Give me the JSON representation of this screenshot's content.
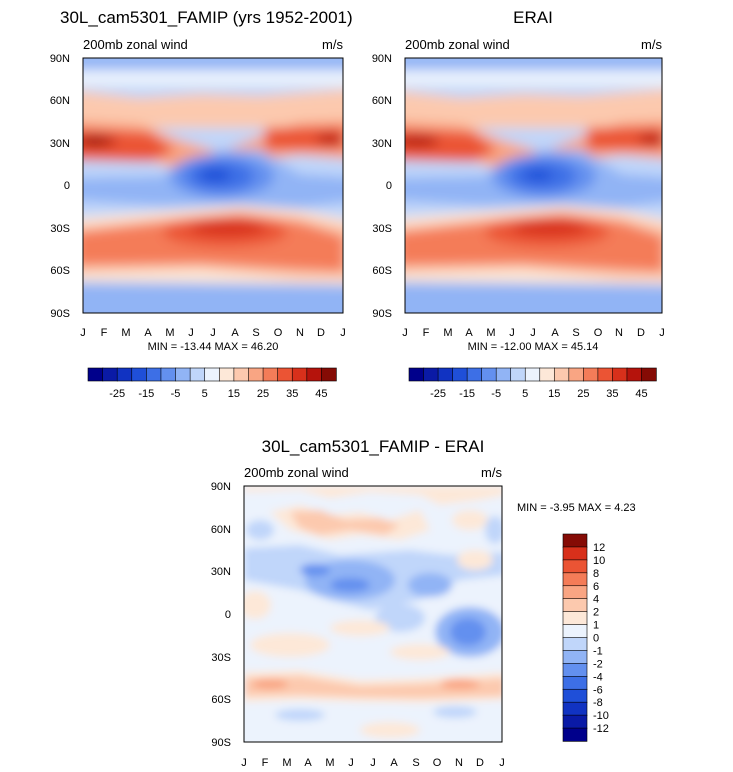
{
  "chart_data": [
    {
      "type": "heatmap",
      "title": "30L_cam5301_FAMIP (yrs 1952-2001)",
      "left_label": "200mb zonal wind",
      "right_label": "m/s",
      "x_ticks": [
        "J",
        "F",
        "M",
        "A",
        "M",
        "J",
        "J",
        "A",
        "S",
        "O",
        "N",
        "D",
        "J"
      ],
      "y_ticks": [
        "90N",
        "60N",
        "30N",
        "0",
        "30S",
        "60S",
        "90S"
      ],
      "ylim": [
        -90,
        90
      ],
      "stats": "MIN = -13.44 MAX =  46.20",
      "min": -13.44,
      "max": 46.2,
      "colorbar_levels": [
        -30,
        -25,
        -20,
        -15,
        -10,
        -5,
        0,
        5,
        10,
        15,
        20,
        25,
        30,
        35,
        40,
        45
      ],
      "colorbar_labels": [
        "-25",
        "-15",
        "-5",
        "5",
        "15",
        "25",
        "35",
        "45"
      ],
      "colorbar_colors": [
        "#00008b",
        "#0a1aa6",
        "#1133c2",
        "#1f4fd8",
        "#3d6fe6",
        "#6390ef",
        "#91b4f5",
        "#c0d6fa",
        "#ecf3fd",
        "#fde8d8",
        "#fcc9ae",
        "#f9a583",
        "#f47c58",
        "#eb5434",
        "#d8301b",
        "#b5130c",
        "#850b05"
      ]
    },
    {
      "type": "heatmap",
      "title": "ERAI",
      "left_label": "200mb zonal wind",
      "right_label": "m/s",
      "x_ticks": [
        "J",
        "F",
        "M",
        "A",
        "M",
        "J",
        "J",
        "A",
        "S",
        "O",
        "N",
        "D",
        "J"
      ],
      "y_ticks": [
        "90N",
        "60N",
        "30N",
        "0",
        "30S",
        "60S",
        "90S"
      ],
      "ylim": [
        -90,
        90
      ],
      "stats": "MIN = -12.00 MAX =  45.14",
      "min": -12.0,
      "max": 45.14,
      "colorbar_levels": [
        -30,
        -25,
        -20,
        -15,
        -10,
        -5,
        0,
        5,
        10,
        15,
        20,
        25,
        30,
        35,
        40,
        45
      ],
      "colorbar_labels": [
        "-25",
        "-15",
        "-5",
        "5",
        "15",
        "25",
        "35",
        "45"
      ],
      "colorbar_colors": [
        "#00008b",
        "#0a1aa6",
        "#1133c2",
        "#1f4fd8",
        "#3d6fe6",
        "#6390ef",
        "#91b4f5",
        "#c0d6fa",
        "#ecf3fd",
        "#fde8d8",
        "#fcc9ae",
        "#f9a583",
        "#f47c58",
        "#eb5434",
        "#d8301b",
        "#b5130c",
        "#850b05"
      ]
    },
    {
      "type": "heatmap",
      "title": "30L_cam5301_FAMIP - ERAI",
      "left_label": "200mb zonal wind",
      "right_label": "m/s",
      "x_ticks": [
        "J",
        "F",
        "M",
        "A",
        "M",
        "J",
        "J",
        "A",
        "S",
        "O",
        "N",
        "D",
        "J"
      ],
      "y_ticks": [
        "90N",
        "60N",
        "30N",
        "0",
        "30S",
        "60S",
        "90S"
      ],
      "ylim": [
        -90,
        90
      ],
      "stats": "MIN =  -3.95 MAX =   4.23",
      "min": -3.95,
      "max": 4.23,
      "colorbar_levels": [
        -12,
        -10,
        -8,
        -6,
        -4,
        -2,
        -1,
        0,
        1,
        2,
        4,
        6,
        8,
        10,
        12
      ],
      "colorbar_labels": [
        "-12",
        "-10",
        "-8",
        "-6",
        "-4",
        "-2",
        "-1",
        "0",
        "1",
        "2",
        "4",
        "6",
        "8",
        "10",
        "12"
      ],
      "colorbar_colors": [
        "#00008b",
        "#0a1aa6",
        "#1133c2",
        "#1f4fd8",
        "#3d6fe6",
        "#6390ef",
        "#91b4f5",
        "#c0d6fa",
        "#ecf3fd",
        "#fde8d8",
        "#fcc9ae",
        "#f9a583",
        "#f47c58",
        "#eb5434",
        "#d8301b",
        "#850b05"
      ]
    }
  ]
}
